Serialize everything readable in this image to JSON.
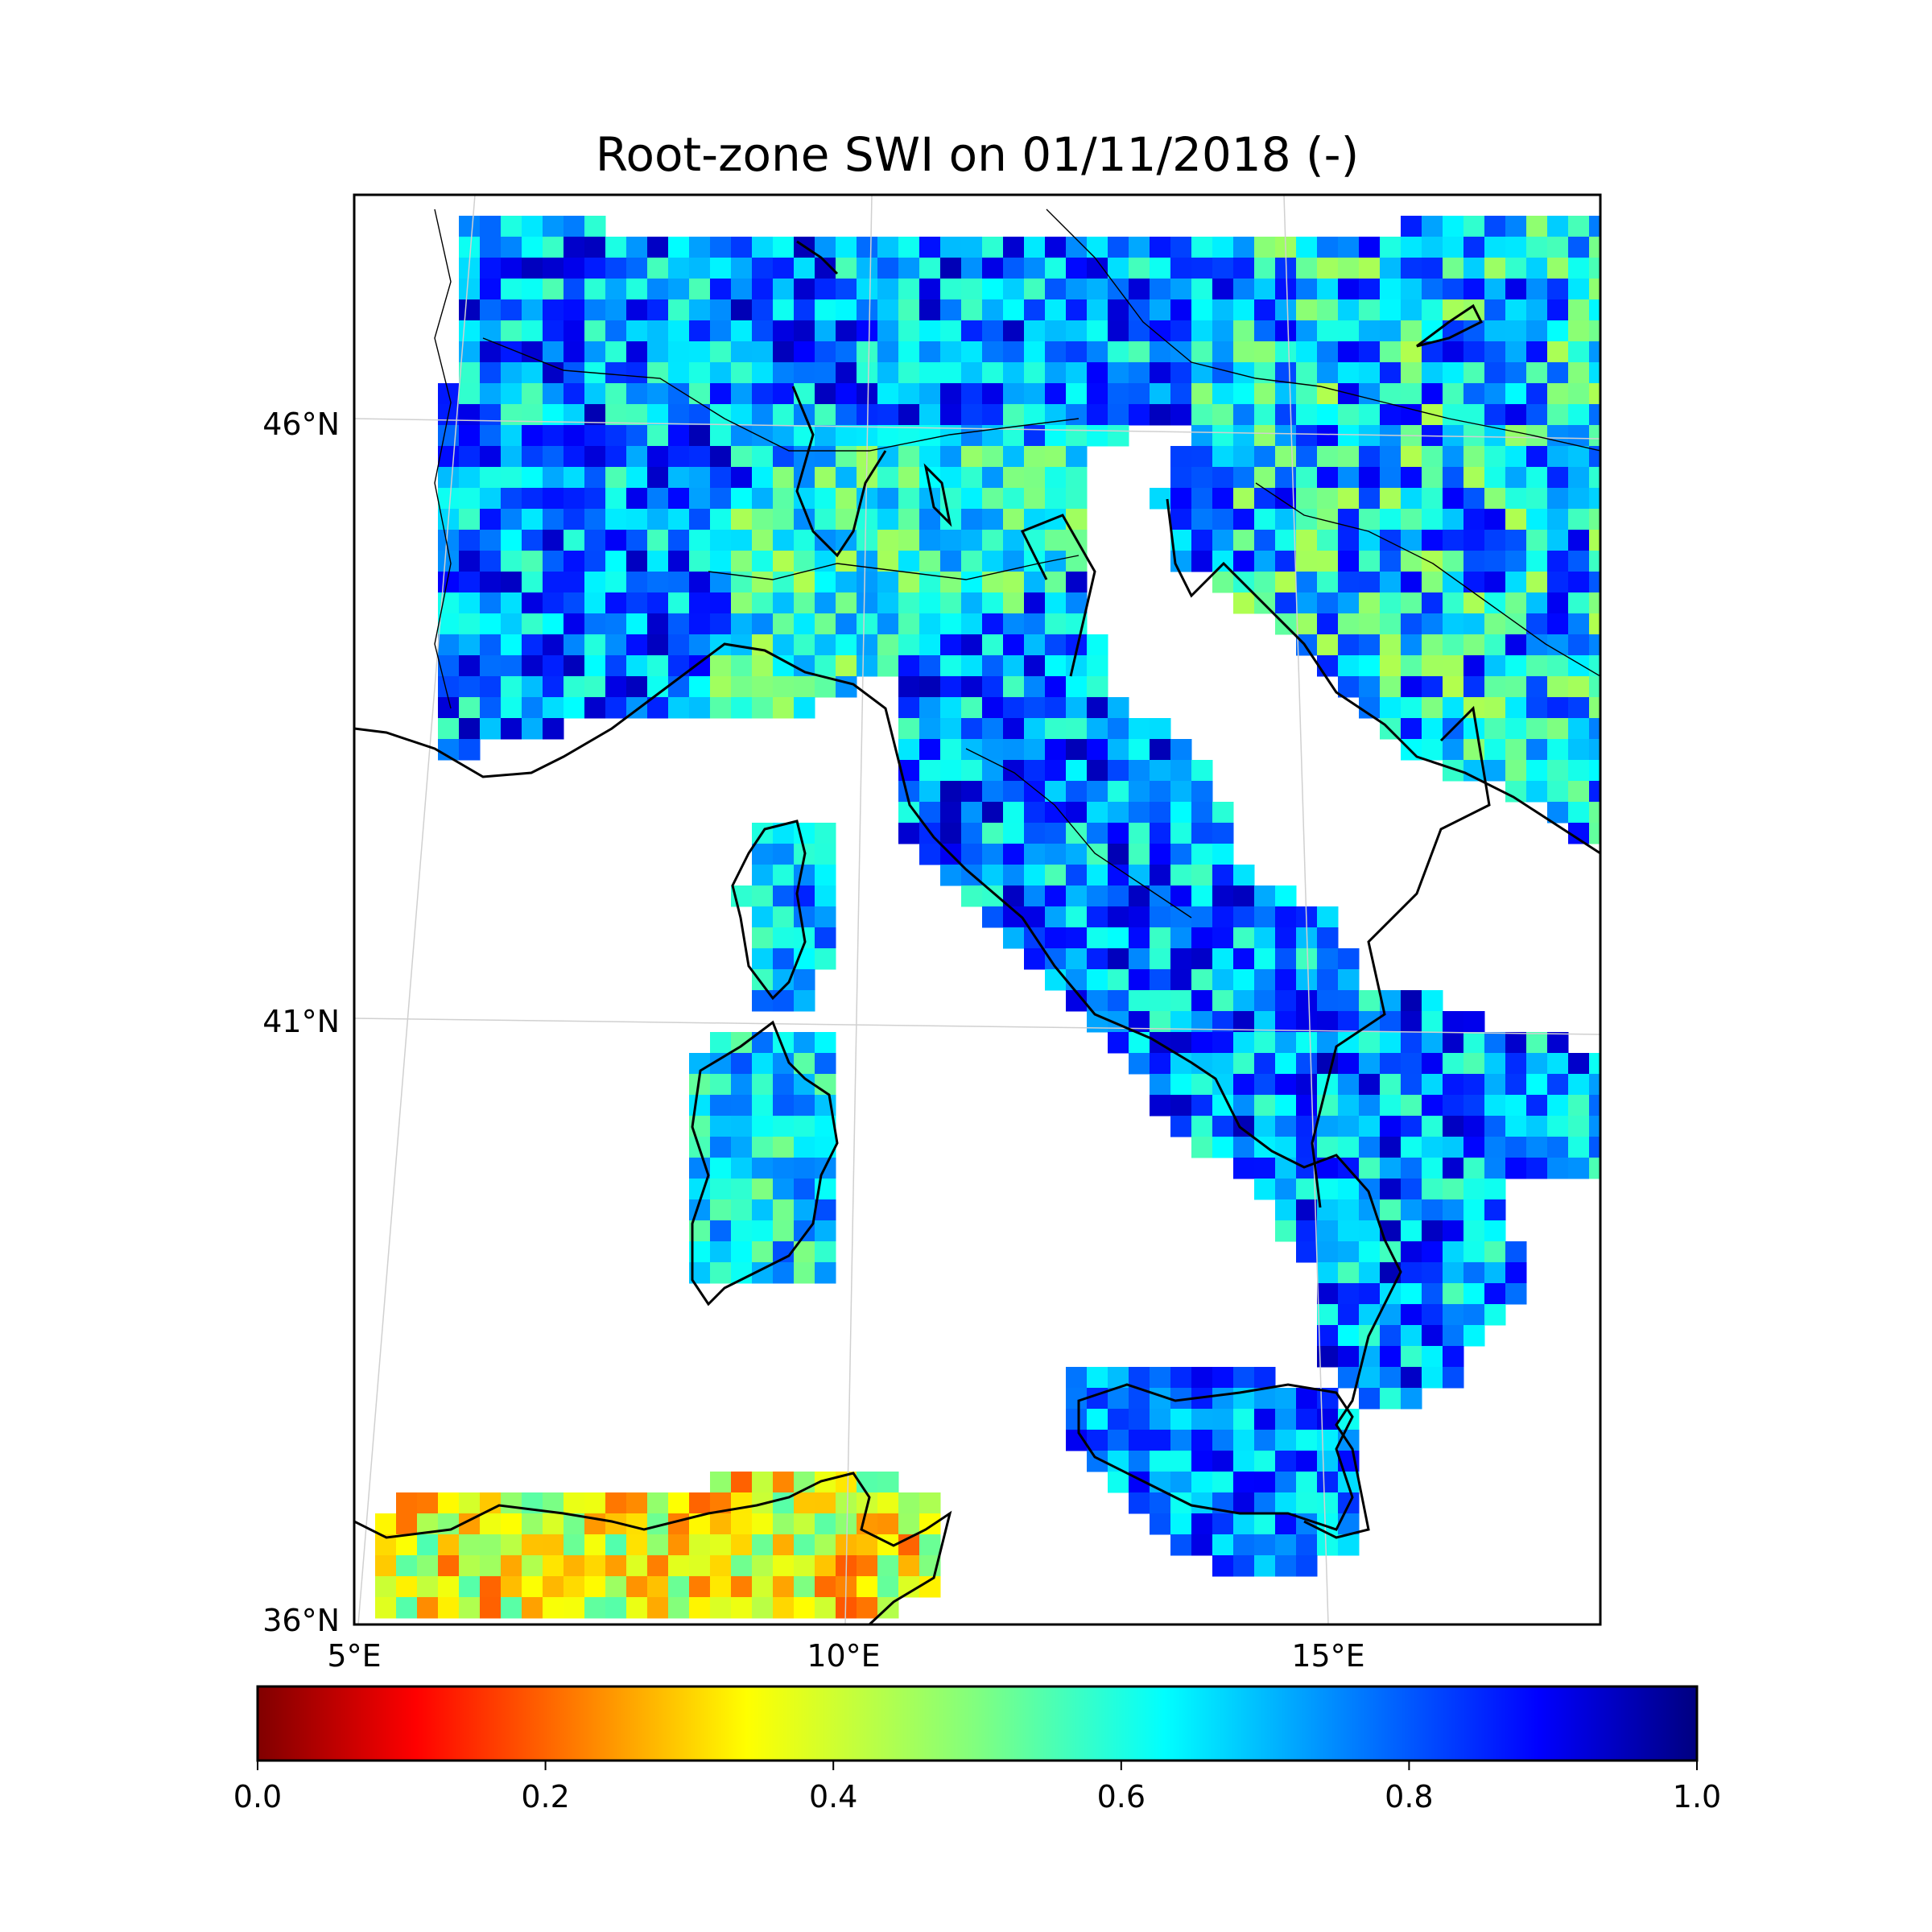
{
  "title": "Root-zone SWI on 01/11/2018 (-)",
  "map": {
    "projection": "conic",
    "extent": {
      "lon": [
        5,
        17.8
      ],
      "lat": [
        36,
        48
      ]
    },
    "lat_labels": [
      "46°N",
      "41°N",
      "36°N"
    ],
    "lon_labels": [
      "5°E",
      "10°E",
      "15°E"
    ],
    "gridlines": true,
    "no_data_color": "#ffffff",
    "coast_color": "#000000"
  },
  "regions": [
    {
      "name": "alps-north",
      "value_range": [
        0.55,
        0.95
      ]
    },
    {
      "name": "po-valley",
      "value_range": [
        0.45,
        0.75
      ]
    },
    {
      "name": "peninsula",
      "value_range": [
        0.55,
        0.95
      ]
    },
    {
      "name": "corsica",
      "value_range": [
        0.55,
        0.85
      ]
    },
    {
      "name": "sardinia",
      "value_range": [
        0.5,
        0.8
      ]
    },
    {
      "name": "sicily",
      "value_range": [
        0.6,
        0.9
      ]
    },
    {
      "name": "tunisia-algeria",
      "value_range": [
        0.2,
        0.55
      ]
    },
    {
      "name": "balkans",
      "value_range": [
        0.45,
        0.9
      ]
    }
  ],
  "colorbar": {
    "colormap": "jet_r",
    "min": 0.0,
    "max": 1.0,
    "ticks": [
      "0.0",
      "0.2",
      "0.4",
      "0.6",
      "0.8",
      "1.0"
    ]
  }
}
